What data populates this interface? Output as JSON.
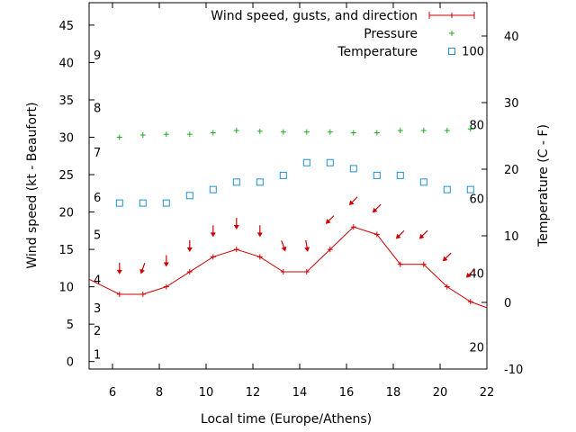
{
  "chart_data": {
    "type": "line",
    "xlabel": "Local time (Europe/Athens)",
    "ylabel_left": "Wind speed (kt - Beaufort)",
    "ylabel_right": "Temperature (C - F)",
    "xlim": [
      5,
      22
    ],
    "ylim_left": [
      -1,
      48
    ],
    "ylim_right": [
      -10,
      45
    ],
    "x_ticks": [
      6,
      8,
      10,
      12,
      14,
      16,
      18,
      20,
      22
    ],
    "y_left_ticks": [
      0,
      5,
      10,
      15,
      20,
      25,
      30,
      35,
      40,
      45
    ],
    "y_right_ticks": [
      -10,
      0,
      10,
      20,
      30,
      40
    ],
    "beaufort_labels": [
      {
        "label": "1",
        "value": 1.0
      },
      {
        "label": "2",
        "value": 4.2
      },
      {
        "label": "3",
        "value": 7.2
      },
      {
        "label": "4",
        "value": 11.0
      },
      {
        "label": "5",
        "value": 17.0
      },
      {
        "label": "6",
        "value": 22.0
      },
      {
        "label": "7",
        "value": 28.0
      },
      {
        "label": "8",
        "value": 34.0
      },
      {
        "label": "9",
        "value": 41.0
      }
    ],
    "fahrenheit_labels": [
      {
        "label": "20",
        "value": -6.7
      },
      {
        "label": "40",
        "value": 4.4
      },
      {
        "label": "60",
        "value": 15.6
      },
      {
        "label": "80",
        "value": 26.7
      },
      {
        "label": "100",
        "value": 37.8
      }
    ],
    "legend": [
      {
        "label": "Wind speed, gusts, and direction",
        "color": "#cc0000",
        "marker": "line-plus"
      },
      {
        "label": "Pressure",
        "color": "#22aa22",
        "marker": "plus"
      },
      {
        "label": "Temperature",
        "color": "#1e90d0",
        "marker": "square"
      }
    ],
    "series": [
      {
        "name": "Wind speed, gusts, and direction",
        "axis": "left",
        "color": "#cc0000",
        "x": [
          5,
          6.3,
          7.3,
          8.3,
          9.3,
          10.3,
          11.3,
          12.3,
          13.3,
          14.3,
          15.3,
          16.3,
          17.3,
          18.3,
          19.3,
          20.3,
          21.3,
          22
        ],
        "values": [
          11,
          9,
          9,
          10,
          12,
          14,
          15,
          14,
          12,
          12,
          15,
          18,
          17,
          13,
          13,
          10,
          8,
          7.2
        ]
      },
      {
        "name": "Pressure",
        "axis": "left",
        "color": "#22aa22",
        "x": [
          6.3,
          7.3,
          8.3,
          9.3,
          10.3,
          11.3,
          12.3,
          13.3,
          14.3,
          15.3,
          16.3,
          17.3,
          18.3,
          19.3,
          20.3,
          21.3
        ],
        "values": [
          30.0,
          30.3,
          30.4,
          30.4,
          30.6,
          30.9,
          30.8,
          30.7,
          30.7,
          30.7,
          30.6,
          30.6,
          30.9,
          30.9,
          30.9,
          31.1
        ]
      },
      {
        "name": "Temperature",
        "axis": "left",
        "color": "#1e90d0",
        "x": [
          6.3,
          7.3,
          8.3,
          9.3,
          10.3,
          11.3,
          12.3,
          13.3,
          14.3,
          15.3,
          16.3,
          17.3,
          18.3,
          19.3,
          20.3,
          21.3
        ],
        "values": [
          21.2,
          21.2,
          21.2,
          22.2,
          23.0,
          24.0,
          24.0,
          24.9,
          26.6,
          26.6,
          25.8,
          24.9,
          24.9,
          24.0,
          23.0,
          23.0
        ]
      }
    ],
    "direction_arrows": {
      "color": "#cc0000",
      "x": [
        6.3,
        7.3,
        8.3,
        9.3,
        10.3,
        11.3,
        12.3,
        13.3,
        14.3,
        15.3,
        16.3,
        17.3,
        18.3,
        19.3,
        20.3,
        21.3
      ],
      "y": [
        12.5,
        12.5,
        13.5,
        15.5,
        17.5,
        18.5,
        17.5,
        15.5,
        15.5,
        19.0,
        21.5,
        20.5,
        17.0,
        17.0,
        14.0,
        11.8
      ],
      "angle_deg": [
        0,
        20,
        0,
        0,
        0,
        0,
        0,
        -20,
        -10,
        45,
        45,
        45,
        45,
        45,
        45,
        45
      ]
    }
  }
}
